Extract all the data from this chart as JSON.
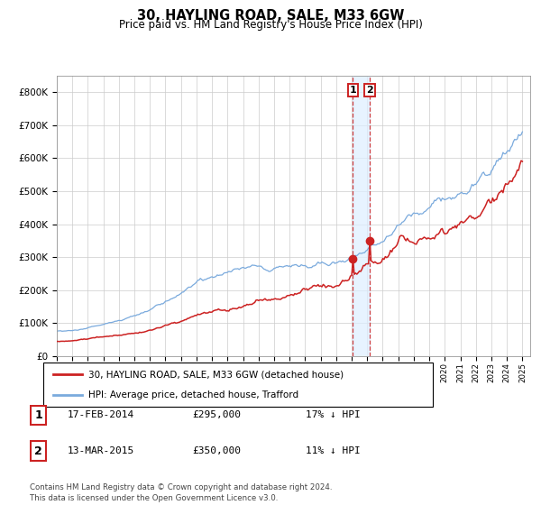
{
  "title": "30, HAYLING ROAD, SALE, M33 6GW",
  "subtitle": "Price paid vs. HM Land Registry's House Price Index (HPI)",
  "hpi_color": "#7aaadd",
  "price_color": "#cc2222",
  "transaction1_price": 295000,
  "transaction2_price": 350000,
  "transaction1_text": "17-FEB-2014",
  "transaction2_text": "13-MAR-2015",
  "transaction1_pct": "17% ↓ HPI",
  "transaction2_pct": "11% ↓ HPI",
  "legend_price_label": "30, HAYLING ROAD, SALE, M33 6GW (detached house)",
  "legend_hpi_label": "HPI: Average price, detached house, Trafford",
  "footer": "Contains HM Land Registry data © Crown copyright and database right 2024.\nThis data is licensed under the Open Government Licence v3.0.",
  "ylim": [
    0,
    850000
  ],
  "yticks": [
    0,
    100000,
    200000,
    300000,
    400000,
    500000,
    600000,
    700000,
    800000
  ],
  "ytick_labels": [
    "£0",
    "£100K",
    "£200K",
    "£300K",
    "£400K",
    "£500K",
    "£600K",
    "£700K",
    "£800K"
  ]
}
